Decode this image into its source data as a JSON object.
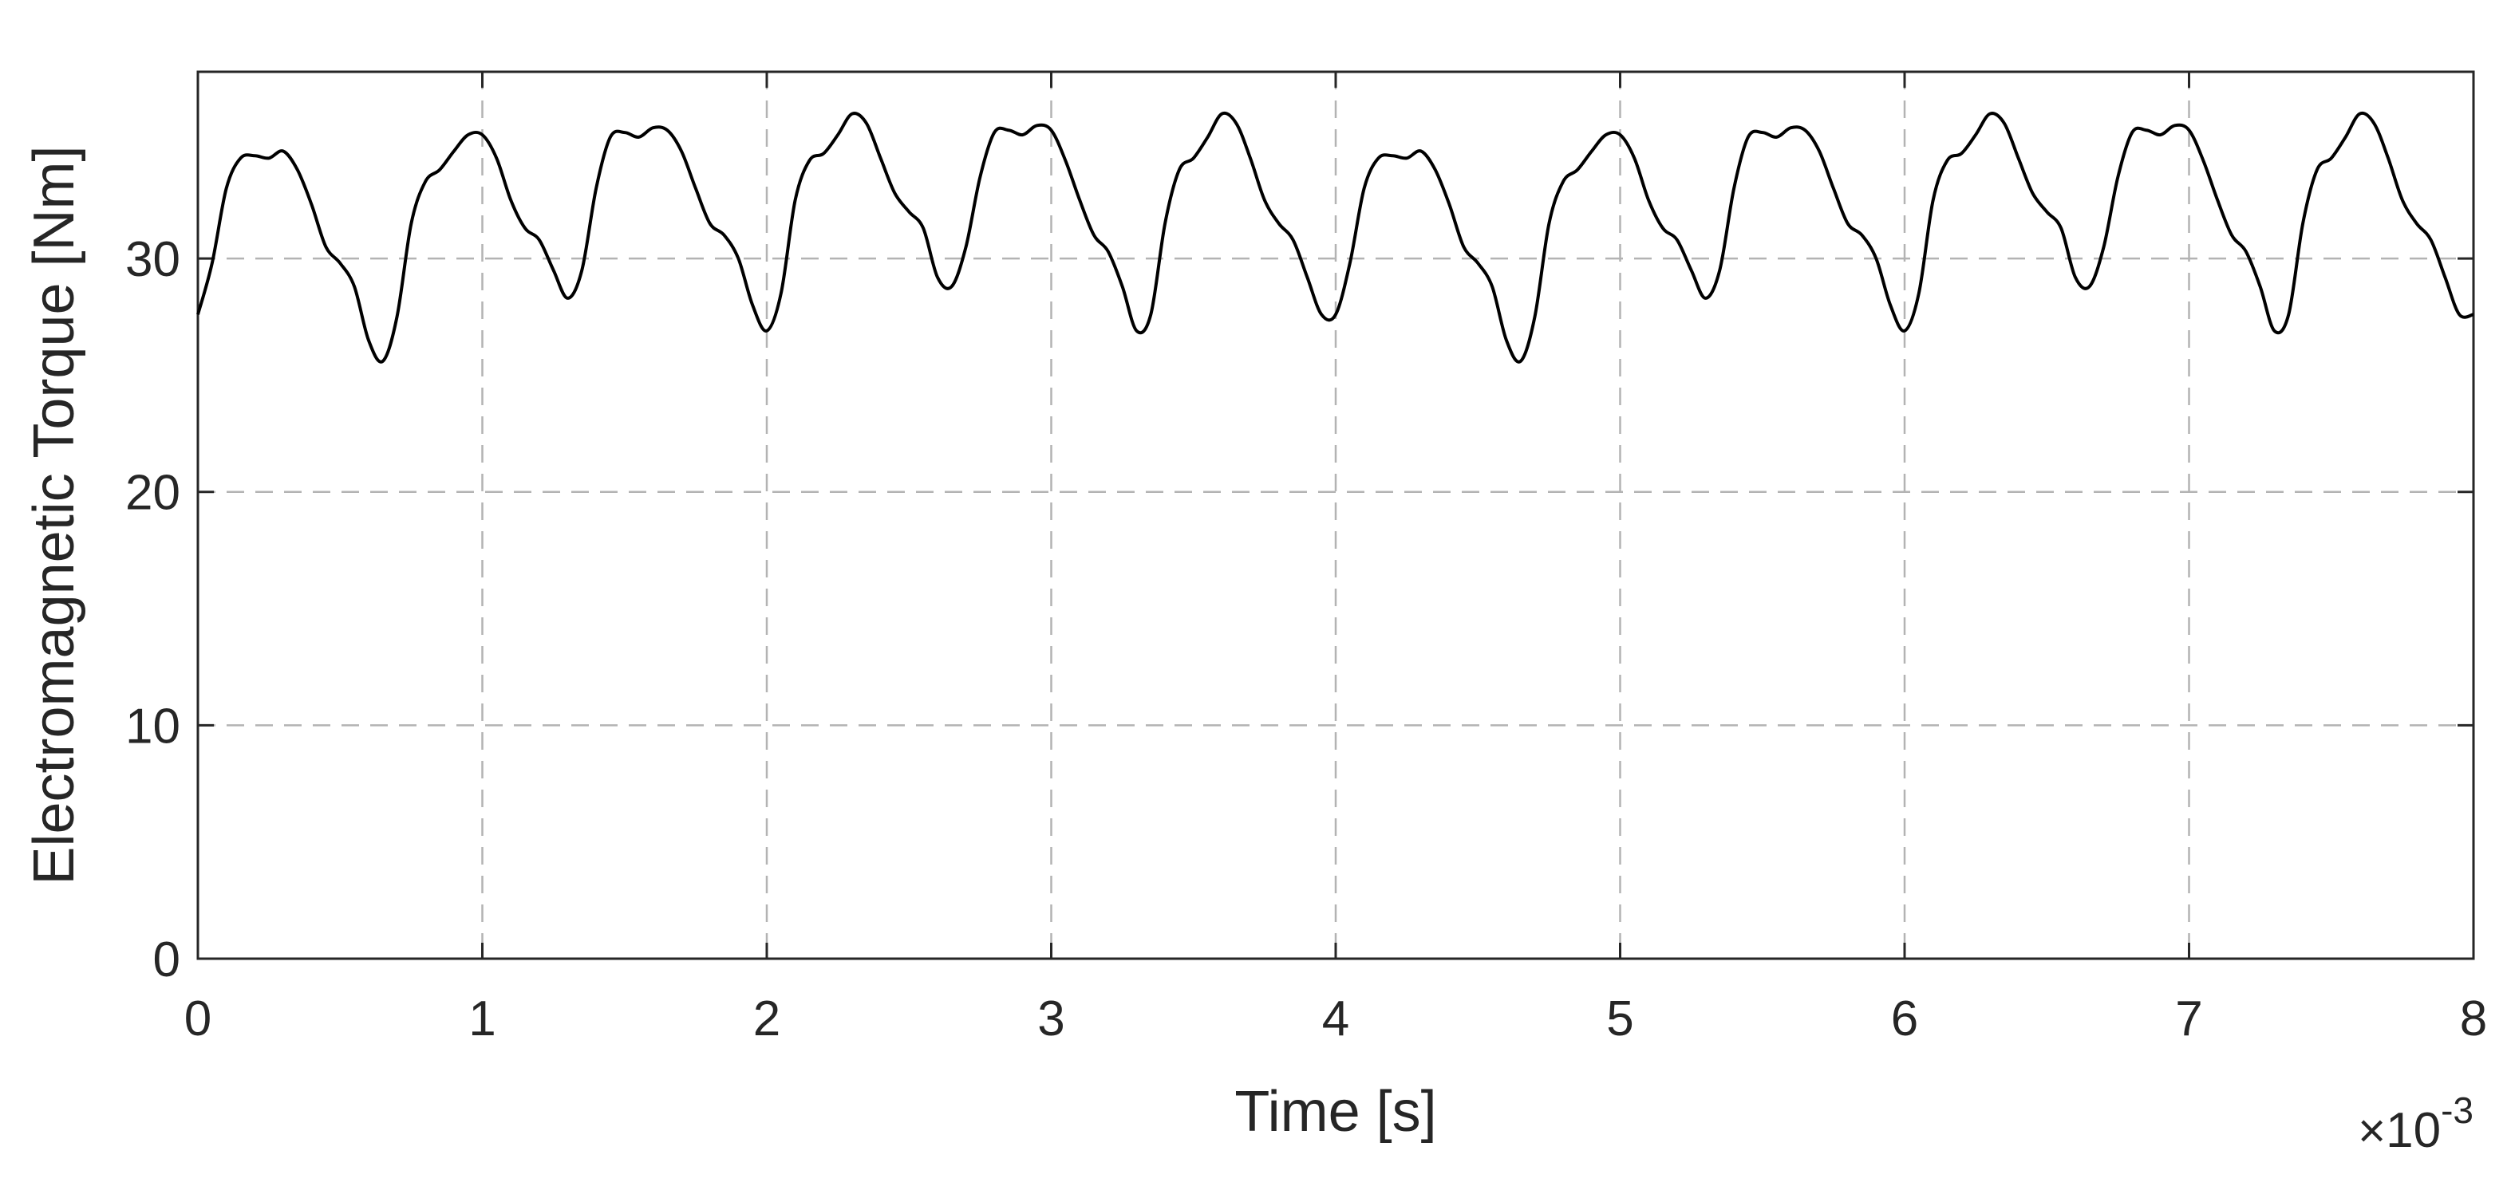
{
  "chart_data": {
    "type": "line",
    "title": "",
    "xlabel": "Time [s]",
    "ylabel": "Electromagnetic Torque [Nm]",
    "x_exponent": {
      "times": "×",
      "base": "10",
      "power": "-3"
    },
    "xlim": [
      0,
      8
    ],
    "ylim": [
      0,
      38
    ],
    "x_ticks": [
      "0",
      "1",
      "2",
      "3",
      "4",
      "5",
      "6",
      "7",
      "8"
    ],
    "y_ticks": [
      "0",
      "10",
      "20",
      "30"
    ],
    "grid": true,
    "grid_style": "dashed",
    "line_color": "#000000",
    "series": [
      {
        "x": [
          0.0,
          0.05,
          0.1,
          0.15,
          0.2,
          0.25,
          0.3,
          0.35,
          0.4,
          0.45,
          0.5,
          0.55,
          0.6,
          0.65,
          0.7,
          0.75,
          0.8,
          0.85,
          0.9,
          0.95,
          1.0,
          1.05,
          1.1,
          1.15,
          1.2,
          1.25,
          1.3,
          1.35,
          1.4,
          1.45,
          1.5,
          1.55,
          1.6,
          1.65,
          1.7,
          1.75,
          1.8,
          1.85,
          1.9,
          1.95,
          2.0,
          2.05,
          2.1,
          2.15,
          2.2,
          2.25,
          2.3,
          2.35,
          2.4,
          2.45,
          2.5,
          2.55,
          2.6,
          2.65,
          2.7,
          2.75,
          2.8,
          2.85,
          2.9,
          2.95,
          3.0,
          3.05,
          3.1,
          3.15,
          3.2,
          3.25,
          3.3,
          3.35,
          3.4,
          3.45,
          3.5,
          3.55,
          3.6,
          3.65,
          3.7,
          3.75,
          3.8,
          3.85,
          3.9,
          3.95,
          4.0,
          4.05,
          4.1,
          4.15,
          4.2,
          4.25,
          4.3,
          4.35,
          4.4,
          4.45,
          4.5,
          4.55,
          4.6,
          4.65,
          4.7,
          4.75,
          4.8,
          4.85,
          4.9,
          4.95,
          5.0,
          5.05,
          5.1,
          5.15,
          5.2,
          5.25,
          5.3,
          5.35,
          5.4,
          5.45,
          5.5,
          5.55,
          5.6,
          5.65,
          5.7,
          5.75,
          5.8,
          5.85,
          5.9,
          5.95,
          6.0,
          6.05,
          6.1,
          6.15,
          6.2,
          6.25,
          6.3,
          6.35,
          6.4,
          6.45,
          6.5,
          6.55,
          6.6,
          6.65,
          6.7,
          6.75,
          6.8,
          6.85,
          6.9,
          6.95,
          7.0,
          7.05,
          7.1,
          7.15,
          7.2,
          7.25,
          7.3,
          7.35,
          7.4,
          7.45,
          7.5,
          7.55,
          7.6,
          7.65,
          7.7,
          7.75,
          7.8,
          7.85,
          7.9,
          7.95,
          8.0
        ],
        "y": [
          27.6,
          29.8,
          33.0,
          34.3,
          34.4,
          34.3,
          34.6,
          33.8,
          32.3,
          30.5,
          29.8,
          28.8,
          26.5,
          25.6,
          27.5,
          31.5,
          33.3,
          33.8,
          34.6,
          35.3,
          35.3,
          34.3,
          32.5,
          31.3,
          30.8,
          29.5,
          28.3,
          29.5,
          33.0,
          35.2,
          35.4,
          35.2,
          35.6,
          35.5,
          34.6,
          33.0,
          31.5,
          31.0,
          30.0,
          28.0,
          26.9,
          28.5,
          32.5,
          34.2,
          34.5,
          35.3,
          36.2,
          35.8,
          34.3,
          32.8,
          32.0,
          31.3,
          29.2,
          28.8,
          30.5,
          33.5,
          35.4,
          35.5,
          35.3,
          35.7,
          35.5,
          34.2,
          32.5,
          31.0,
          30.3,
          28.8,
          26.9,
          27.6,
          31.5,
          33.8,
          34.3,
          35.2,
          36.2,
          35.8,
          34.3,
          32.5,
          31.5,
          30.8,
          29.2,
          27.6,
          27.6,
          29.8,
          33.0,
          34.3,
          34.4,
          34.3,
          34.6,
          33.8,
          32.3,
          30.5,
          29.8,
          28.8,
          26.5,
          25.6,
          27.5,
          31.5,
          33.3,
          33.8,
          34.6,
          35.3,
          35.3,
          34.3,
          32.5,
          31.3,
          30.8,
          29.5,
          28.3,
          29.5,
          33.0,
          35.2,
          35.4,
          35.2,
          35.6,
          35.5,
          34.6,
          33.0,
          31.5,
          31.0,
          30.0,
          28.0,
          26.9,
          28.5,
          32.5,
          34.2,
          34.5,
          35.3,
          36.2,
          35.8,
          34.3,
          32.8,
          32.0,
          31.3,
          29.2,
          28.8,
          30.5,
          33.5,
          35.4,
          35.5,
          35.3,
          35.7,
          35.5,
          34.2,
          32.5,
          31.0,
          30.3,
          28.8,
          26.9,
          27.6,
          31.5,
          33.8,
          34.3,
          35.2,
          36.2,
          35.8,
          34.3,
          32.5,
          31.5,
          30.8,
          29.2,
          27.6,
          27.6
        ]
      }
    ]
  }
}
